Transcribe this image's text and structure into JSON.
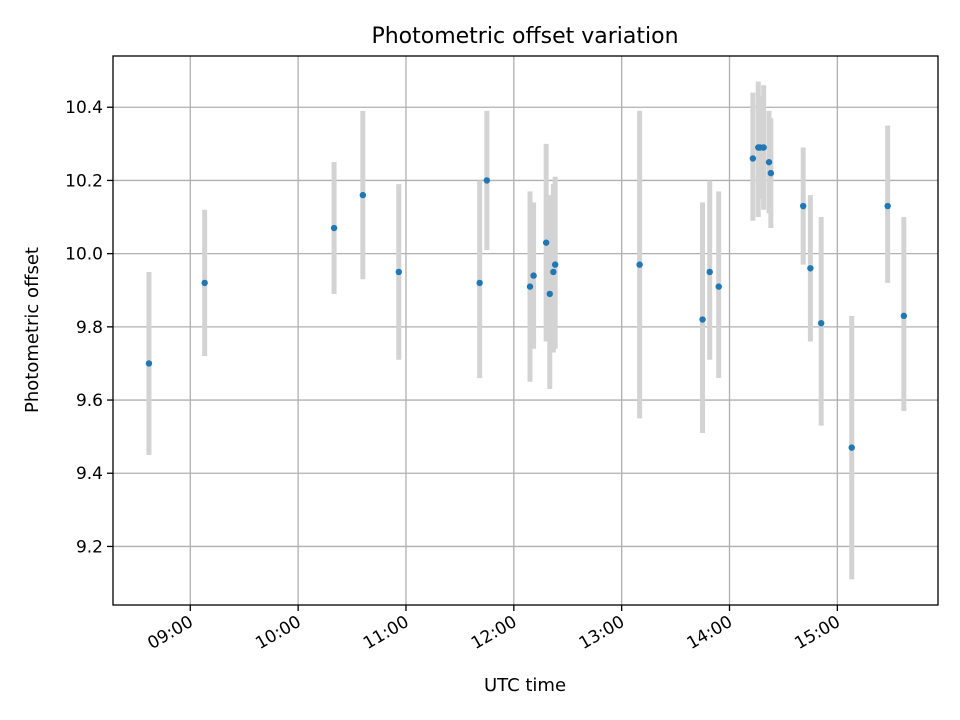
{
  "chart_data": {
    "type": "scatter",
    "title": "Photometric offset variation",
    "xlabel": "UTC time",
    "ylabel": "Photometric offset",
    "x_format": "HH:MM",
    "xlim": [
      "08:17",
      "15:56"
    ],
    "ylim": [
      9.04,
      10.54
    ],
    "xticks": [
      "09:00",
      "10:00",
      "11:00",
      "12:00",
      "13:00",
      "14:00",
      "15:00"
    ],
    "yticks": [
      9.2,
      9.4,
      9.6,
      9.8,
      10.0,
      10.2,
      10.4
    ],
    "grid": true,
    "colors": {
      "point": "#1f77b4",
      "errorbar": "#d3d3d3"
    },
    "points": [
      {
        "x": "08:37",
        "y": 9.7,
        "y_low": 9.45,
        "y_high": 9.95
      },
      {
        "x": "09:08",
        "y": 9.92,
        "y_low": 9.72,
        "y_high": 10.12
      },
      {
        "x": "10:20",
        "y": 10.07,
        "y_low": 9.89,
        "y_high": 10.25
      },
      {
        "x": "10:36",
        "y": 10.16,
        "y_low": 9.93,
        "y_high": 10.39
      },
      {
        "x": "10:56",
        "y": 9.95,
        "y_low": 9.71,
        "y_high": 10.19
      },
      {
        "x": "11:41",
        "y": 9.92,
        "y_low": 9.66,
        "y_high": 10.2
      },
      {
        "x": "11:45",
        "y": 10.2,
        "y_low": 10.01,
        "y_high": 10.39
      },
      {
        "x": "12:09",
        "y": 9.91,
        "y_low": 9.65,
        "y_high": 10.17
      },
      {
        "x": "12:11",
        "y": 9.94,
        "y_low": 9.74,
        "y_high": 10.14
      },
      {
        "x": "12:18",
        "y": 10.03,
        "y_low": 9.76,
        "y_high": 10.3
      },
      {
        "x": "12:20",
        "y": 9.89,
        "y_low": 9.63,
        "y_high": 10.16
      },
      {
        "x": "12:22",
        "y": 9.95,
        "y_low": 9.73,
        "y_high": 10.19
      },
      {
        "x": "12:23",
        "y": 9.97,
        "y_low": 9.74,
        "y_high": 10.21
      },
      {
        "x": "13:10",
        "y": 9.97,
        "y_low": 9.55,
        "y_high": 10.39
      },
      {
        "x": "13:45",
        "y": 9.82,
        "y_low": 9.51,
        "y_high": 10.14
      },
      {
        "x": "13:49",
        "y": 9.95,
        "y_low": 9.71,
        "y_high": 10.2
      },
      {
        "x": "13:54",
        "y": 9.91,
        "y_low": 9.66,
        "y_high": 10.17
      },
      {
        "x": "14:13",
        "y": 10.26,
        "y_low": 10.09,
        "y_high": 10.44
      },
      {
        "x": "14:16",
        "y": 10.29,
        "y_low": 10.1,
        "y_high": 10.47
      },
      {
        "x": "14:17",
        "y": 10.29,
        "y_low": 10.15,
        "y_high": 10.43
      },
      {
        "x": "14:19",
        "y": 10.29,
        "y_low": 10.12,
        "y_high": 10.46
      },
      {
        "x": "14:22",
        "y": 10.25,
        "y_low": 10.11,
        "y_high": 10.39
      },
      {
        "x": "14:23",
        "y": 10.22,
        "y_low": 10.07,
        "y_high": 10.37
      },
      {
        "x": "14:41",
        "y": 10.13,
        "y_low": 9.97,
        "y_high": 10.29
      },
      {
        "x": "14:45",
        "y": 9.96,
        "y_low": 9.76,
        "y_high": 10.16
      },
      {
        "x": "14:51",
        "y": 9.81,
        "y_low": 9.53,
        "y_high": 10.1
      },
      {
        "x": "15:08",
        "y": 9.47,
        "y_low": 9.11,
        "y_high": 9.83
      },
      {
        "x": "15:28",
        "y": 10.13,
        "y_low": 9.92,
        "y_high": 10.35
      },
      {
        "x": "15:37",
        "y": 9.83,
        "y_low": 9.57,
        "y_high": 10.1
      }
    ]
  }
}
